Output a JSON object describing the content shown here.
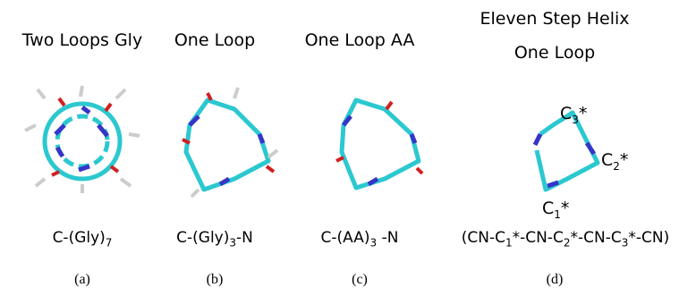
{
  "panels": [
    {
      "title": [
        "Two Loops Gly"
      ],
      "formula": [
        {
          "text": "C-(Gly)"
        },
        {
          "sub": "7"
        }
      ],
      "caption": "(a)"
    },
    {
      "title": [
        "One Loop"
      ],
      "formula": [
        {
          "text": "C-(Gly)"
        },
        {
          "sub": "3"
        },
        {
          "text": "-N"
        }
      ],
      "caption": "(b)"
    },
    {
      "title": [
        "One Loop AA"
      ],
      "formula": [
        {
          "text": "C-(AA)"
        },
        {
          "sub": "3"
        },
        {
          "text": " -N"
        }
      ],
      "caption": "(c)"
    },
    {
      "title": [
        "Eleven Step Helix",
        "One Loop"
      ],
      "formula": [
        {
          "text": "(CN-C"
        },
        {
          "sub": "1"
        },
        {
          "text": "*-CN-C"
        },
        {
          "sub": "2"
        },
        {
          "text": "*-CN-C"
        },
        {
          "sub": "3"
        },
        {
          "text": "*-CN)"
        }
      ],
      "caption": "(d)",
      "annotations": [
        [
          {
            "text": "C"
          },
          {
            "sub": "3"
          },
          {
            "text": "*"
          }
        ],
        [
          {
            "text": "C"
          },
          {
            "sub": "2"
          },
          {
            "text": "*"
          }
        ],
        [
          {
            "text": "C"
          },
          {
            "sub": "1"
          },
          {
            "text": "*"
          }
        ]
      ]
    }
  ]
}
